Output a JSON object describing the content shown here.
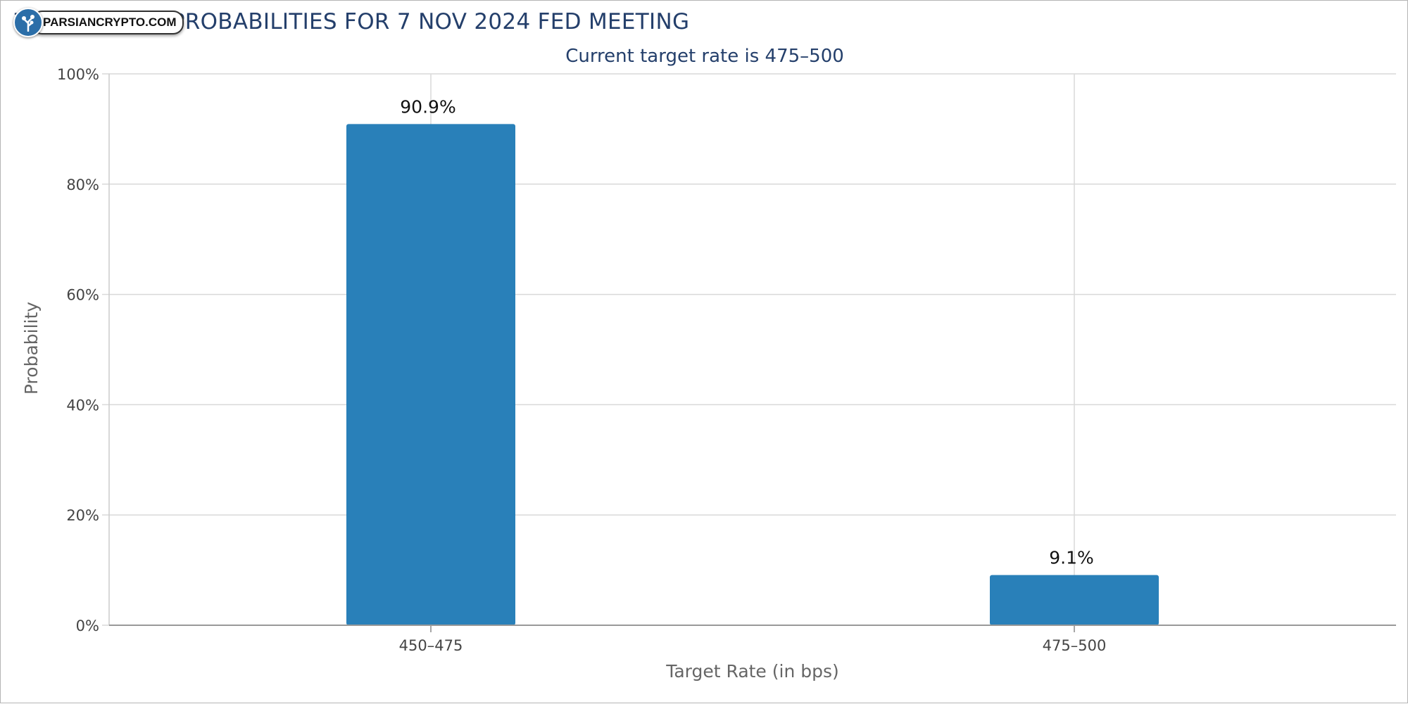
{
  "title": "TARGET RATE PROBABILITIES FOR 7 NOV 2024 FED MEETING",
  "subtitle": "Current target rate is 475–500",
  "watermark": {
    "text": "PARSIANCRYPTO.COM",
    "icon": "tree-logo-icon"
  },
  "colors": {
    "bar": "#2980b9",
    "title": "#243f6b",
    "grid": "#d9d9d9",
    "axis": "#555555"
  },
  "chart_data": {
    "type": "bar",
    "categories": [
      "450–475",
      "475–500"
    ],
    "values": [
      90.9,
      9.1
    ],
    "data_labels": [
      "90.9%",
      "9.1%"
    ],
    "xlabel": "Target Rate (in bps)",
    "ylabel": "Probability",
    "ylim": [
      0,
      100
    ],
    "yticks": [
      0,
      20,
      40,
      60,
      80,
      100
    ],
    "ytick_labels": [
      "0%",
      "20%",
      "40%",
      "60%",
      "80%",
      "100%"
    ],
    "grid": true,
    "legend": "none"
  }
}
